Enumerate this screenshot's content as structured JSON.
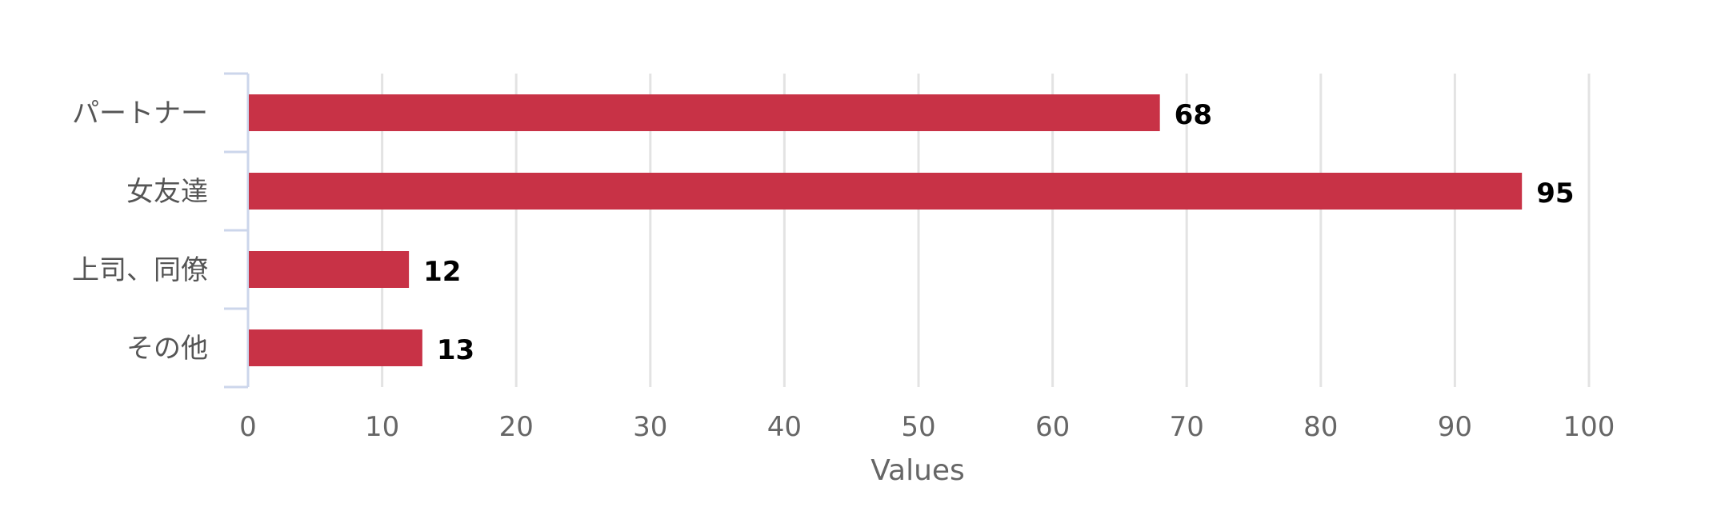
{
  "chart_data": {
    "type": "bar",
    "orientation": "horizontal",
    "categories": [
      "パートナー",
      "女友達",
      "上司、同僚",
      "その他"
    ],
    "values": [
      68,
      95,
      12,
      13
    ],
    "title": "",
    "xlabel": "Values",
    "ylabel": "",
    "xlim": [
      0,
      100
    ],
    "ticks": [
      0,
      10,
      20,
      30,
      40,
      50,
      60,
      70,
      80,
      90,
      100
    ],
    "grid": true,
    "legend": "none",
    "data_labels": true,
    "bar_color": "#c83246"
  }
}
